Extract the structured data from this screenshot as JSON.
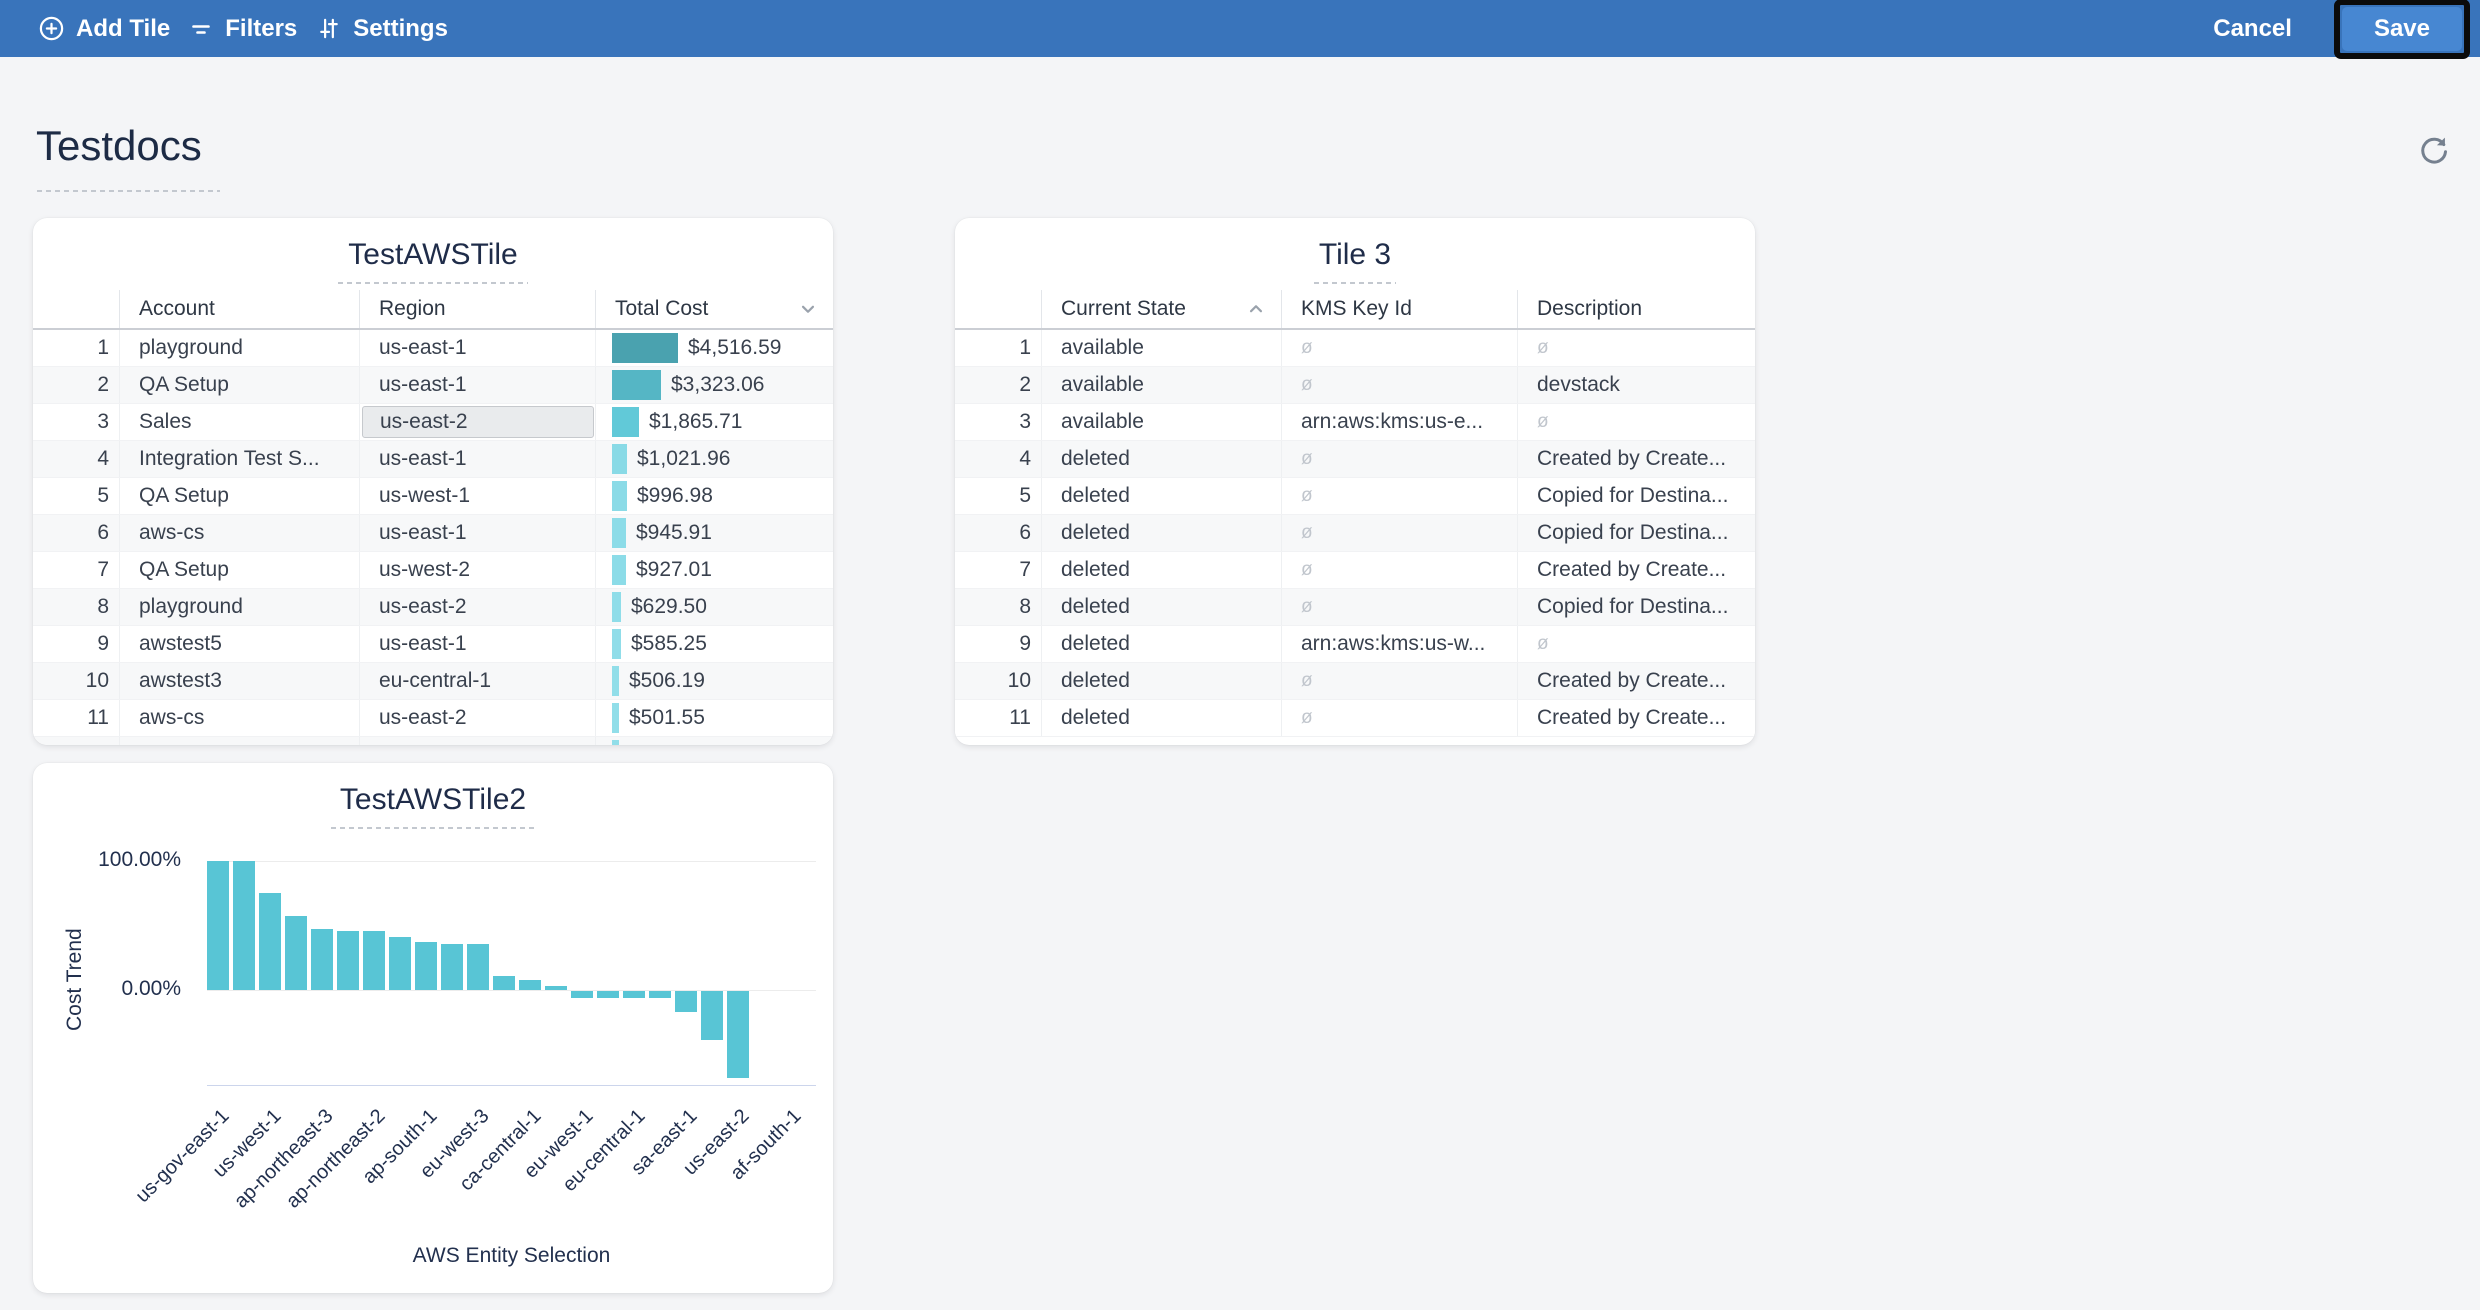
{
  "toolbar": {
    "add_tile": "Add Tile",
    "filters": "Filters",
    "settings": "Settings",
    "cancel": "Cancel",
    "save": "Save",
    "bg_color": "#3974bb",
    "save_color": "#4787d2"
  },
  "page": {
    "title": "Testdocs"
  },
  "tile1": {
    "title": "TestAWSTile",
    "columns": {
      "account": "Account",
      "region": "Region",
      "cost": "Total Cost"
    },
    "sort_icon": "chevron-down",
    "max_cost_value": 4516.59,
    "rows": [
      {
        "n": "1",
        "account": "playground",
        "region": "us-east-1",
        "cost": "$4,516.59",
        "value": 4516.59,
        "bar_color": "#4aa2af"
      },
      {
        "n": "2",
        "account": "QA Setup",
        "region": "us-east-1",
        "cost": "$3,323.06",
        "value": 3323.06,
        "bar_color": "#55b6c5"
      },
      {
        "n": "3",
        "account": "Sales",
        "region": "us-east-2",
        "cost": "$1,865.71",
        "value": 1865.71,
        "bar_color": "#61c9d8",
        "selected_cell": "region"
      },
      {
        "n": "4",
        "account": "Integration Test S...",
        "region": "us-east-1",
        "cost": "$1,021.96",
        "value": 1021.96,
        "bar_color": "#89dae6"
      },
      {
        "n": "5",
        "account": "QA Setup",
        "region": "us-west-1",
        "cost": "$996.98",
        "value": 996.98,
        "bar_color": "#8bdbe7"
      },
      {
        "n": "6",
        "account": "aws-cs",
        "region": "us-east-1",
        "cost": "$945.91",
        "value": 945.91,
        "bar_color": "#8cdce8"
      },
      {
        "n": "7",
        "account": "QA Setup",
        "region": "us-west-2",
        "cost": "$927.01",
        "value": 927.01,
        "bar_color": "#8cdce8"
      },
      {
        "n": "8",
        "account": "playground",
        "region": "us-east-2",
        "cost": "$629.50",
        "value": 629.5,
        "bar_color": "#8fdde9"
      },
      {
        "n": "9",
        "account": "awstest5",
        "region": "us-east-1",
        "cost": "$585.25",
        "value": 585.25,
        "bar_color": "#90dde9"
      },
      {
        "n": "10",
        "account": "awstest3",
        "region": "eu-central-1",
        "cost": "$506.19",
        "value": 506.19,
        "bar_color": "#91dee9"
      },
      {
        "n": "11",
        "account": "aws-cs",
        "region": "us-east-2",
        "cost": "$501.55",
        "value": 501.55,
        "bar_color": "#91dee9"
      },
      {
        "n": "",
        "account": "",
        "region": "",
        "cost": "",
        "value": 480.0,
        "bar_color": "#91dee9",
        "partial": true
      }
    ]
  },
  "tile2": {
    "title": "Tile 3",
    "columns": {
      "state": "Current State",
      "kms": "KMS Key Id",
      "desc": "Description"
    },
    "sort_icon": "chevron-up",
    "null_symbol": "ø",
    "rows": [
      {
        "n": "1",
        "state": "available",
        "kms": null,
        "desc": null
      },
      {
        "n": "2",
        "state": "available",
        "kms": null,
        "desc": "devstack"
      },
      {
        "n": "3",
        "state": "available",
        "kms": "arn:aws:kms:us-e...",
        "desc": null
      },
      {
        "n": "4",
        "state": "deleted",
        "kms": null,
        "desc": "Created by Create..."
      },
      {
        "n": "5",
        "state": "deleted",
        "kms": null,
        "desc": "Copied for Destina..."
      },
      {
        "n": "6",
        "state": "deleted",
        "kms": null,
        "desc": "Copied for Destina..."
      },
      {
        "n": "7",
        "state": "deleted",
        "kms": null,
        "desc": "Created by Create..."
      },
      {
        "n": "8",
        "state": "deleted",
        "kms": null,
        "desc": "Copied for Destina..."
      },
      {
        "n": "9",
        "state": "deleted",
        "kms": "arn:aws:kms:us-w...",
        "desc": null
      },
      {
        "n": "10",
        "state": "deleted",
        "kms": null,
        "desc": "Created by Create..."
      },
      {
        "n": "11",
        "state": "deleted",
        "kms": null,
        "desc": "Created by Create..."
      }
    ]
  },
  "chart_data": {
    "type": "bar",
    "title": "TestAWSTile2",
    "xlabel": "AWS Entity Selection",
    "ylabel": "Cost Trend",
    "y_ticks": [
      "100.00%",
      "0.00%"
    ],
    "ylim_pct": [
      -77,
      107
    ],
    "grid": "horizontal-only",
    "legend": "none",
    "bar_color": "#58c5d5",
    "values_pct": [
      100,
      100,
      75.5,
      57.5,
      47,
      45.5,
      45.5,
      41.5,
      37.5,
      36,
      36,
      11,
      8,
      3,
      -5,
      -5,
      -5,
      -5,
      -16,
      -38,
      -67.5,
      0,
      0,
      0
    ],
    "tick_labels": [
      "us-gov-east-1",
      "us-west-1",
      "ap-northeast-3",
      "ap-northeast-2",
      "ap-south-1",
      "eu-west-3",
      "ca-central-1",
      "eu-west-1",
      "eu-central-1",
      "sa-east-1",
      "us-east-2",
      "af-south-1"
    ],
    "tick_every": 2
  }
}
